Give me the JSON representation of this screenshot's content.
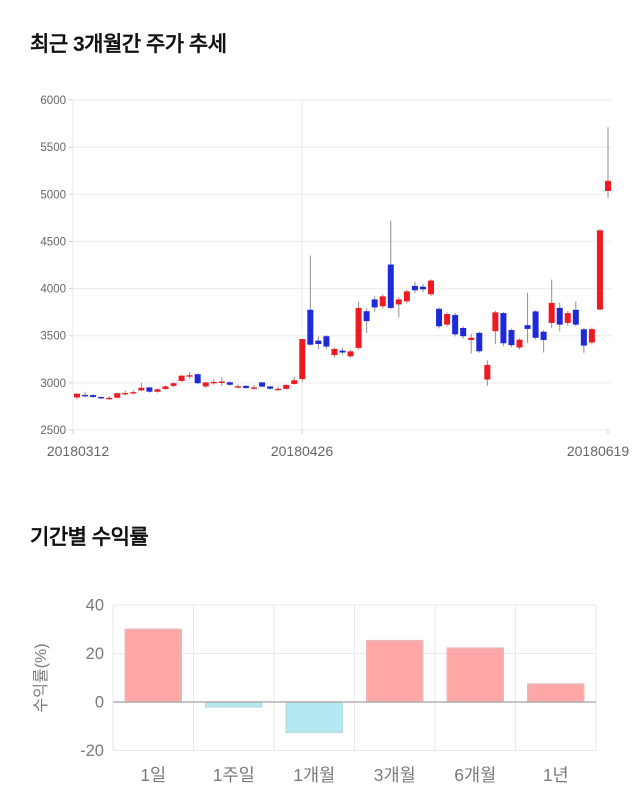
{
  "price_chart": {
    "title": "최근 3개월간 주가 추세"
  },
  "returns_chart": {
    "title": "기간별 수익률"
  },
  "chart_data": [
    {
      "type": "candlestick",
      "title": "최근 3개월간 주가 추세",
      "y_ticks": [
        2500,
        3000,
        3500,
        4000,
        4500,
        5000,
        5500,
        6000
      ],
      "ylim": [
        2500,
        6000
      ],
      "x_ticks": [
        "20180312",
        "20180426",
        "20180619"
      ],
      "grid": "on",
      "colors": {
        "up": "#ee1a22",
        "down": "#1e2ad8",
        "wick": "#8f8f8f",
        "grid": "#ebebeb",
        "axis": "#cfcfcf",
        "tick_text": "#666666"
      },
      "candles_ohlc_order": [
        "open",
        "high",
        "low",
        "close"
      ],
      "candles": [
        [
          2845,
          2890,
          2825,
          2885
        ],
        [
          2872,
          2905,
          2845,
          2868
        ],
        [
          2870,
          2878,
          2842,
          2850
        ],
        [
          2850,
          2854,
          2828,
          2836
        ],
        [
          2836,
          2858,
          2820,
          2841
        ],
        [
          2842,
          2896,
          2836,
          2890
        ],
        [
          2888,
          2918,
          2868,
          2893
        ],
        [
          2896,
          2922,
          2880,
          2902
        ],
        [
          2920,
          3002,
          2912,
          2948
        ],
        [
          2952,
          2958,
          2896,
          2906
        ],
        [
          2906,
          2942,
          2896,
          2932
        ],
        [
          2935,
          2972,
          2926,
          2962
        ],
        [
          2968,
          3004,
          2952,
          2996
        ],
        [
          3020,
          3082,
          3008,
          3076
        ],
        [
          3078,
          3112,
          3042,
          3081
        ],
        [
          3092,
          3098,
          2986,
          2996
        ],
        [
          2962,
          3014,
          2948,
          3004
        ],
        [
          3006,
          3040,
          2980,
          3010
        ],
        [
          3010,
          3060,
          2970,
          3014
        ],
        [
          3006,
          3018,
          2966,
          2980
        ],
        [
          2960,
          2986,
          2940,
          2964
        ],
        [
          2968,
          2974,
          2936,
          2946
        ],
        [
          2948,
          2980,
          2925,
          2952
        ],
        [
          3005,
          3010,
          2950,
          2960
        ],
        [
          2962,
          2968,
          2926,
          2938
        ],
        [
          2934,
          2962,
          2915,
          2937
        ],
        [
          2936,
          2986,
          2928,
          2978
        ],
        [
          2988,
          3062,
          2980,
          3028
        ],
        [
          3040,
          3468,
          3012,
          3465
        ],
        [
          3775,
          4350,
          3390,
          3405
        ],
        [
          3448,
          3492,
          3355,
          3412
        ],
        [
          3495,
          3505,
          3360,
          3385
        ],
        [
          3295,
          3375,
          3270,
          3360
        ],
        [
          3342,
          3372,
          3300,
          3322
        ],
        [
          3282,
          3348,
          3265,
          3334
        ],
        [
          3370,
          3860,
          3350,
          3795
        ],
        [
          3760,
          3790,
          3530,
          3655
        ],
        [
          3885,
          3920,
          3755,
          3800
        ],
        [
          3812,
          3940,
          3790,
          3918
        ],
        [
          4255,
          4720,
          3780,
          3795
        ],
        [
          3832,
          3912,
          3695,
          3885
        ],
        [
          3865,
          3992,
          3840,
          3970
        ],
        [
          4028,
          4072,
          3950,
          3982
        ],
        [
          4020,
          4052,
          3962,
          3992
        ],
        [
          3940,
          4098,
          3920,
          4085
        ],
        [
          3785,
          3800,
          3578,
          3600
        ],
        [
          3618,
          3748,
          3598,
          3730
        ],
        [
          3720,
          3740,
          3492,
          3515
        ],
        [
          3582,
          3600,
          3470,
          3495
        ],
        [
          3455,
          3520,
          3310,
          3478
        ],
        [
          3530,
          3545,
          3320,
          3335
        ],
        [
          3035,
          3240,
          2968,
          3190
        ],
        [
          3548,
          3765,
          3410,
          3748
        ],
        [
          3740,
          3752,
          3388,
          3420
        ],
        [
          3560,
          3575,
          3378,
          3400
        ],
        [
          3375,
          3470,
          3355,
          3458
        ],
        [
          3612,
          3955,
          3425,
          3572
        ],
        [
          3758,
          3770,
          3460,
          3478
        ],
        [
          3542,
          3560,
          3322,
          3455
        ],
        [
          3635,
          4095,
          3580,
          3848
        ],
        [
          3795,
          3850,
          3546,
          3618
        ],
        [
          3636,
          3762,
          3608,
          3740
        ],
        [
          3775,
          3865,
          3600,
          3618
        ],
        [
          3568,
          3580,
          3318,
          3395
        ],
        [
          3428,
          3588,
          3406,
          3570
        ],
        [
          3778,
          4630,
          3770,
          4618
        ],
        [
          5035,
          5712,
          4956,
          5142
        ]
      ]
    },
    {
      "type": "bar",
      "title": "기간별 수익률",
      "ylabel": "수익률(%)",
      "categories": [
        "1일",
        "1주일",
        "1개월",
        "3개월",
        "6개월",
        "1년"
      ],
      "values": [
        30,
        -2,
        -12.5,
        25.3,
        22.2,
        7.4
      ],
      "y_ticks": [
        40,
        20,
        0,
        -20
      ],
      "ylim": [
        -20,
        40
      ],
      "grid": "on",
      "legend": "none",
      "colors": {
        "positive_fill": "#ffa6a6",
        "positive_stroke": "#e9b8b8",
        "negative_fill": "#b5e9f2",
        "negative_stroke": "#b9dde4",
        "grid": "#e9e9e9",
        "zero_line": "#b0b0b0",
        "tick_text": "#7a7a7a"
      }
    }
  ]
}
